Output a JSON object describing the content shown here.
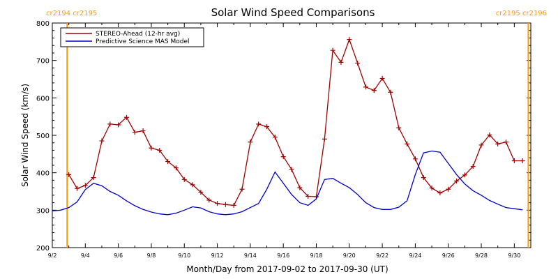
{
  "chart_data": {
    "type": "line",
    "title": "Solar Wind Speed Comparisons",
    "xlabel": "Month/Day from 2017-09-02 to 2017-09-30 (UT)",
    "ylabel": "Solar Wind Speed (km/s)",
    "ylim": [
      200,
      800
    ],
    "xlim_days": [
      2,
      31
    ],
    "yticks": [
      200,
      300,
      400,
      500,
      600,
      700,
      800
    ],
    "xtick_labels": [
      "9/2",
      "9/4",
      "9/6",
      "9/8",
      "9/10",
      "9/12",
      "9/14",
      "9/16",
      "9/18",
      "9/20",
      "9/22",
      "9/24",
      "9/26",
      "9/28",
      "9/30"
    ],
    "xtick_days": [
      2,
      4,
      6,
      8,
      10,
      12,
      14,
      16,
      18,
      20,
      22,
      24,
      26,
      28,
      30
    ],
    "legend_position": "top-left",
    "carrington_markers": [
      {
        "day": 2.9,
        "label": "cr2194 cr2195",
        "side": "left"
      },
      {
        "day": 30.85,
        "label": "cr2195 cr2196",
        "side": "right"
      }
    ],
    "series": [
      {
        "name": "STEREO-Ahead (12-hr avg)",
        "color": "#a00000",
        "marker": "plus",
        "x": [
          3.0,
          3.5,
          4.0,
          4.5,
          5.0,
          5.5,
          6.0,
          6.5,
          7.0,
          7.5,
          8.0,
          8.5,
          9.0,
          9.5,
          10.0,
          10.5,
          11.0,
          11.5,
          12.0,
          12.5,
          13.0,
          13.5,
          14.0,
          14.5,
          15.0,
          15.5,
          16.0,
          16.5,
          17.0,
          17.5,
          18.0,
          18.5,
          19.0,
          19.5,
          20.0,
          20.5,
          21.0,
          21.5,
          22.0,
          22.5,
          23.0,
          23.5,
          24.0,
          24.5,
          25.0,
          25.5,
          26.0,
          26.5,
          27.0,
          27.5,
          28.0,
          28.5,
          29.0,
          29.5,
          30.0,
          30.5
        ],
        "y": [
          395,
          358,
          366,
          387,
          485,
          530,
          528,
          548,
          508,
          512,
          466,
          460,
          430,
          413,
          382,
          368,
          348,
          327,
          318,
          315,
          313,
          356,
          482,
          530,
          523,
          495,
          443,
          409,
          360,
          337,
          336,
          490,
          727,
          695,
          756,
          693,
          629,
          620,
          652,
          615,
          520,
          477,
          437,
          387,
          359,
          346,
          356,
          378,
          394,
          417,
          474,
          501,
          477,
          482,
          432,
          432
        ]
      },
      {
        "name": "Predictive Science MAS Model",
        "color": "#0000cc",
        "marker": "none",
        "x": [
          2.0,
          2.5,
          3.0,
          3.5,
          4.0,
          4.5,
          5.0,
          5.5,
          6.0,
          6.5,
          7.0,
          7.5,
          8.0,
          8.5,
          9.0,
          9.5,
          10.0,
          10.5,
          11.0,
          11.5,
          12.0,
          12.5,
          13.0,
          13.5,
          14.0,
          14.5,
          15.0,
          15.5,
          16.0,
          16.5,
          17.0,
          17.5,
          18.0,
          18.5,
          19.0,
          19.5,
          20.0,
          20.5,
          21.0,
          21.5,
          22.0,
          22.5,
          23.0,
          23.5,
          24.0,
          24.5,
          25.0,
          25.5,
          26.0,
          26.5,
          27.0,
          27.5,
          28.0,
          28.5,
          29.0,
          29.5,
          30.0,
          30.5
        ],
        "y": [
          298,
          300,
          307,
          322,
          355,
          372,
          365,
          350,
          340,
          325,
          312,
          302,
          295,
          290,
          288,
          292,
          300,
          309,
          306,
          296,
          290,
          288,
          290,
          296,
          307,
          318,
          356,
          402,
          372,
          342,
          320,
          313,
          330,
          382,
          385,
          372,
          360,
          342,
          320,
          307,
          302,
          302,
          308,
          325,
          395,
          453,
          458,
          455,
          425,
          395,
          370,
          352,
          340,
          326,
          316,
          307,
          304,
          301
        ]
      }
    ]
  }
}
